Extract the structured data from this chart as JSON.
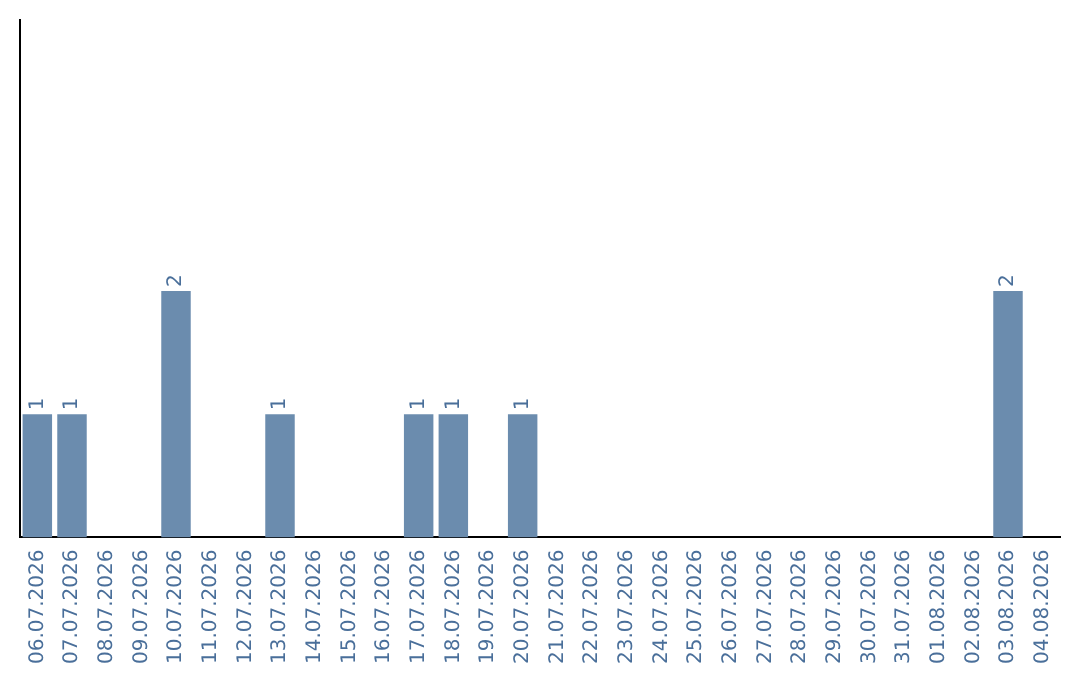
{
  "chart_data": {
    "type": "bar",
    "categories": [
      "06.07.2026",
      "07.07.2026",
      "08.07.2026",
      "09.07.2026",
      "10.07.2026",
      "11.07.2026",
      "12.07.2026",
      "13.07.2026",
      "14.07.2026",
      "15.07.2026",
      "16.07.2026",
      "17.07.2026",
      "18.07.2026",
      "19.07.2026",
      "20.07.2026",
      "21.07.2026",
      "22.07.2026",
      "23.07.2026",
      "24.07.2026",
      "25.07.2026",
      "26.07.2026",
      "27.07.2026",
      "28.07.2026",
      "29.07.2026",
      "30.07.2026",
      "31.07.2026",
      "01.08.2026",
      "02.08.2026",
      "03.08.2026",
      "04.08.2026"
    ],
    "values": [
      1,
      1,
      0,
      0,
      2,
      0,
      0,
      1,
      0,
      0,
      0,
      1,
      1,
      0,
      1,
      0,
      0,
      0,
      0,
      0,
      0,
      0,
      0,
      0,
      0,
      0,
      0,
      0,
      2,
      0
    ],
    "value_labels": [
      "1",
      "1",
      null,
      null,
      "2",
      null,
      null,
      "1",
      null,
      null,
      null,
      "1",
      "1",
      null,
      "1",
      null,
      null,
      null,
      null,
      null,
      null,
      null,
      null,
      null,
      null,
      null,
      null,
      null,
      "2",
      null
    ],
    "color": "#6b8cae",
    "ylim": [
      0,
      4.2
    ],
    "tick_labels": "x",
    "grid": false,
    "legend": false
  }
}
